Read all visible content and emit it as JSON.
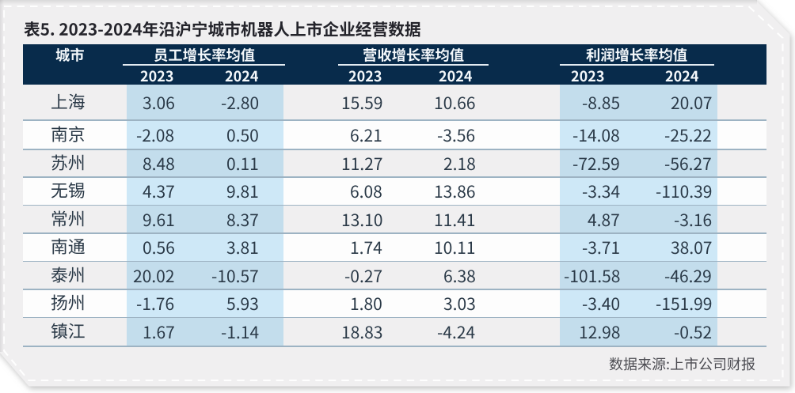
{
  "title": "表5. 2023-2024年沿沪宁城市机器人上市企业经营数据",
  "source_note": "数据来源:上市公司财报",
  "table": {
    "city_header": "城市",
    "groups": [
      {
        "label": "员工增长率均值",
        "years": [
          "2023",
          "2024"
        ]
      },
      {
        "label": "营收增长率均值",
        "years": [
          "2023",
          "2024"
        ]
      },
      {
        "label": "利润增长率均值",
        "years": [
          "2023",
          "2024"
        ]
      }
    ],
    "rows": [
      {
        "city": "上海",
        "values": [
          "3.06",
          "-2.80",
          "15.59",
          "10.66",
          "-8.85",
          "20.07"
        ]
      },
      {
        "city": "南京",
        "values": [
          "-2.08",
          "0.50",
          "6.21",
          "-3.56",
          "-14.08",
          "-25.22"
        ]
      },
      {
        "city": "苏州",
        "values": [
          "8.48",
          "0.11",
          "11.27",
          "2.18",
          "-72.59",
          "-56.27"
        ]
      },
      {
        "city": "无锡",
        "values": [
          "4.37",
          "9.81",
          "6.08",
          "13.86",
          "-3.34",
          "-110.39"
        ]
      },
      {
        "city": "常州",
        "values": [
          "9.61",
          "8.37",
          "13.10",
          "11.41",
          "4.87",
          "-3.16"
        ]
      },
      {
        "city": "南通",
        "values": [
          "0.56",
          "3.81",
          "1.74",
          "10.11",
          "-3.71",
          "38.07"
        ]
      },
      {
        "city": "泰州",
        "values": [
          "20.02",
          "-10.57",
          "-0.27",
          "6.38",
          "-101.58",
          "-46.29"
        ]
      },
      {
        "city": "扬州",
        "values": [
          "-1.76",
          "5.93",
          "1.80",
          "3.03",
          "-3.40",
          "-151.99"
        ]
      },
      {
        "city": "镇江",
        "values": [
          "1.67",
          "-1.14",
          "18.83",
          "-4.24",
          "12.98",
          "-0.52"
        ]
      }
    ]
  },
  "colors": {
    "header_bg": "#082b4b",
    "header_text": "#f4f8fb",
    "header_underline": "#e3ebf2",
    "card_bg": "#f0eff0",
    "row_alt_bg": "#fdfdfd",
    "highlight_on_gray": "#c3ddec",
    "highlight_on_white": "#cee8f7",
    "separator": "#9db3c3",
    "title_text": "#24242b",
    "body_text": "#2a3947",
    "source_text": "#4c4c52"
  },
  "chart_data": {
    "type": "table",
    "title": "表5. 2023-2024年沿沪宁城市机器人上市企业经营数据",
    "column_groups": [
      "员工增长率均值",
      "营收增长率均值",
      "利润增长率均值"
    ],
    "columns": [
      "城市",
      "员工增长率均值 2023",
      "员工增长率均值 2024",
      "营收增长率均值 2023",
      "营收增长率均值 2024",
      "利润增长率均值 2023",
      "利润增长率均值 2024"
    ],
    "rows": [
      [
        "上海",
        3.06,
        -2.8,
        15.59,
        10.66,
        -8.85,
        20.07
      ],
      [
        "南京",
        -2.08,
        0.5,
        6.21,
        -3.56,
        -14.08,
        -25.22
      ],
      [
        "苏州",
        8.48,
        0.11,
        11.27,
        2.18,
        -72.59,
        -56.27
      ],
      [
        "无锡",
        4.37,
        9.81,
        6.08,
        13.86,
        -3.34,
        -110.39
      ],
      [
        "常州",
        9.61,
        8.37,
        13.1,
        11.41,
        4.87,
        -3.16
      ],
      [
        "南通",
        0.56,
        3.81,
        1.74,
        10.11,
        -3.71,
        38.07
      ],
      [
        "泰州",
        20.02,
        -10.57,
        -0.27,
        6.38,
        -101.58,
        -46.29
      ],
      [
        "扬州",
        -1.76,
        5.93,
        1.8,
        3.03,
        -3.4,
        -151.99
      ],
      [
        "镇江",
        1.67,
        -1.14,
        18.83,
        -4.24,
        12.98,
        -0.52
      ]
    ],
    "source": "数据来源:上市公司财报"
  }
}
